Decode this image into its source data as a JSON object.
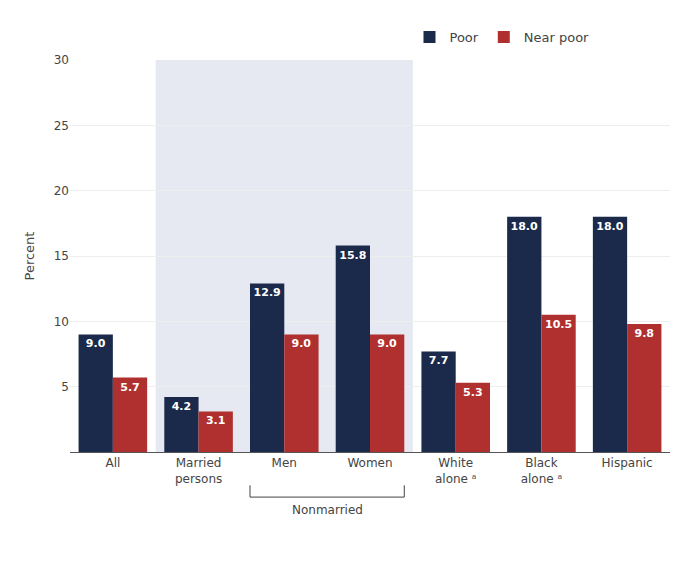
{
  "chart_data": {
    "type": "bar",
    "ylabel": "Percent",
    "categories": [
      "All",
      "Married\npersons",
      "Men",
      "Women",
      "White\nalone ᵃ",
      "Black\nalone ᵃ",
      "Hispanic"
    ],
    "series": [
      {
        "name": "Poor",
        "color": "#1b2a4a",
        "values": [
          9.0,
          4.2,
          12.9,
          15.8,
          7.7,
          18.0,
          18.0
        ],
        "value_labels": [
          "9.0",
          "4.2",
          "12.9",
          "15.8",
          "7.7",
          "18.0",
          "18.0"
        ]
      },
      {
        "name": "Near poor",
        "color": "#b03030",
        "values": [
          5.7,
          3.1,
          9.0,
          9.0,
          5.3,
          10.5,
          9.8
        ],
        "value_labels": [
          "5.7",
          "3.1",
          "9.0",
          "9.0",
          "5.3",
          "10.5",
          "9.8"
        ]
      }
    ],
    "ylim": [
      0,
      30
    ],
    "yticks": [
      5,
      10,
      15,
      20,
      25,
      30
    ],
    "grid": true,
    "data_labels": true,
    "annotations": [
      "Nonmarried"
    ]
  }
}
